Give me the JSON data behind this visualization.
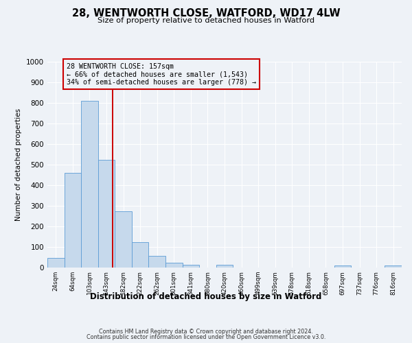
{
  "title": "28, WENTWORTH CLOSE, WATFORD, WD17 4LW",
  "subtitle": "Size of property relative to detached houses in Watford",
  "xlabel": "Distribution of detached houses by size in Watford",
  "ylabel": "Number of detached properties",
  "bar_labels": [
    "24sqm",
    "64sqm",
    "103sqm",
    "143sqm",
    "182sqm",
    "222sqm",
    "262sqm",
    "301sqm",
    "341sqm",
    "380sqm",
    "420sqm",
    "460sqm",
    "499sqm",
    "539sqm",
    "578sqm",
    "618sqm",
    "658sqm",
    "697sqm",
    "737sqm",
    "776sqm",
    "816sqm"
  ],
  "bar_heights": [
    47,
    460,
    810,
    522,
    275,
    123,
    58,
    23,
    12,
    0,
    12,
    0,
    0,
    0,
    0,
    0,
    0,
    10,
    0,
    0,
    10
  ],
  "bar_color": "#c6d9ec",
  "bar_edgecolor": "#5b9bd5",
  "bar_width": 1.0,
  "vline_color": "#cc0000",
  "vline_x": 3.36,
  "ylim": [
    0,
    1000
  ],
  "yticks": [
    0,
    100,
    200,
    300,
    400,
    500,
    600,
    700,
    800,
    900,
    1000
  ],
  "annotation_title": "28 WENTWORTH CLOSE: 157sqm",
  "annotation_line1": "← 66% of detached houses are smaller (1,543)",
  "annotation_line2": "34% of semi-detached houses are larger (778) →",
  "annotation_box_color": "#cc0000",
  "background_color": "#eef2f7",
  "grid_color": "#ffffff",
  "footer_line1": "Contains HM Land Registry data © Crown copyright and database right 2024.",
  "footer_line2": "Contains public sector information licensed under the Open Government Licence v3.0."
}
